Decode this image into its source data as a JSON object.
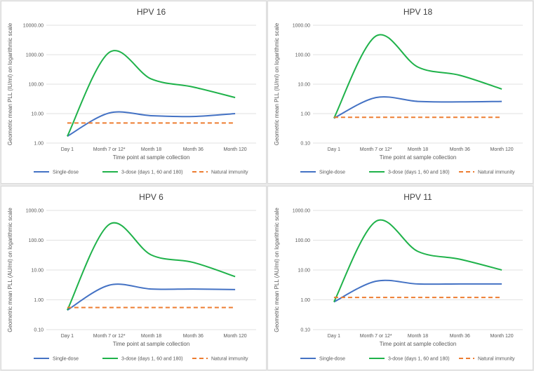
{
  "colors": {
    "single": "#4472c4",
    "three": "#1fb24a",
    "natural": "#ed7d31"
  },
  "legend": [
    "Single-dose",
    "3-dose (days 1, 60 and 180)",
    "Natural immunity"
  ],
  "chart_data": [
    {
      "type": "line",
      "title": "HPV 16",
      "xlabel": "Time point at sample collection",
      "ylabel": "Geometric mean PLL (IU/ml) on logarithmic scale",
      "yscale": "log",
      "ylim": [
        1,
        10000
      ],
      "yticks": [
        "1.00",
        "10.00",
        "100.00",
        "1000.00",
        "10000.00"
      ],
      "categories": [
        "Day 1",
        "Month 7 or 12*",
        "Month 18",
        "Month 36",
        "Month 120"
      ],
      "series": [
        {
          "name": "Single-dose",
          "values": [
            1.7,
            10.5,
            8.5,
            8.0,
            10.0
          ]
        },
        {
          "name": "3-dose (days 1, 60 and 180)",
          "values": [
            1.7,
            1200,
            150,
            80,
            35
          ]
        },
        {
          "name": "Natural immunity",
          "values": [
            4.8,
            4.8,
            4.8,
            4.8,
            4.8
          ]
        }
      ]
    },
    {
      "type": "line",
      "title": "HPV 18",
      "xlabel": "Time point at sample collection",
      "ylabel": "Geometric mean PLL (IU/ml) on logarithmic scale",
      "yscale": "log",
      "ylim": [
        0.1,
        1000
      ],
      "yticks": [
        "0.10",
        "1.00",
        "10.00",
        "100.00",
        "1000.00"
      ],
      "categories": [
        "Day 1",
        "Month 7 or 12*",
        "Month 18",
        "Month 36",
        "Month 120"
      ],
      "series": [
        {
          "name": "Single-dose",
          "values": [
            0.7,
            3.5,
            2.6,
            2.5,
            2.6
          ]
        },
        {
          "name": "3-dose (days 1, 60 and 180)",
          "values": [
            0.7,
            430,
            38,
            20,
            6.8
          ]
        },
        {
          "name": "Natural immunity",
          "values": [
            0.75,
            0.75,
            0.75,
            0.75,
            0.75
          ]
        }
      ]
    },
    {
      "type": "line",
      "title": "HPV 6",
      "xlabel": "Time point at sample collection",
      "ylabel": "Geometric mean PLL (AU/ml) on logarithmic scale",
      "yscale": "log",
      "ylim": [
        0.1,
        1000
      ],
      "yticks": [
        "0.10",
        "1.00",
        "10.00",
        "100.00",
        "1000.00"
      ],
      "categories": [
        "Day 1",
        "Month 7 or 12*",
        "Month 18",
        "Month 36",
        "Month 120"
      ],
      "series": [
        {
          "name": "Single-dose",
          "values": [
            0.45,
            3.1,
            2.3,
            2.3,
            2.2
          ]
        },
        {
          "name": "3-dose (days 1, 60 and 180)",
          "values": [
            0.45,
            340,
            32,
            18,
            6.0
          ]
        },
        {
          "name": "Natural immunity",
          "values": [
            0.55,
            0.55,
            0.55,
            0.55,
            0.55
          ]
        }
      ]
    },
    {
      "type": "line",
      "title": "HPV 11",
      "xlabel": "Time point at sample collection",
      "ylabel": "Geometric mean PLL (AU/ml) on logarithmic scale",
      "yscale": "log",
      "ylim": [
        0.1,
        1000
      ],
      "yticks": [
        "0.10",
        "1.00",
        "10.00",
        "100.00",
        "1000.00"
      ],
      "categories": [
        "Day 1",
        "Month 7 or 12*",
        "Month 18",
        "Month 36",
        "Month 120"
      ],
      "series": [
        {
          "name": "Single-dose",
          "values": [
            0.85,
            4.2,
            3.4,
            3.4,
            3.4
          ]
        },
        {
          "name": "3-dose (days 1, 60 and 180)",
          "values": [
            0.85,
            430,
            42,
            23,
            10
          ]
        },
        {
          "name": "Natural immunity",
          "values": [
            1.2,
            1.2,
            1.2,
            1.2,
            1.2
          ]
        }
      ]
    }
  ]
}
